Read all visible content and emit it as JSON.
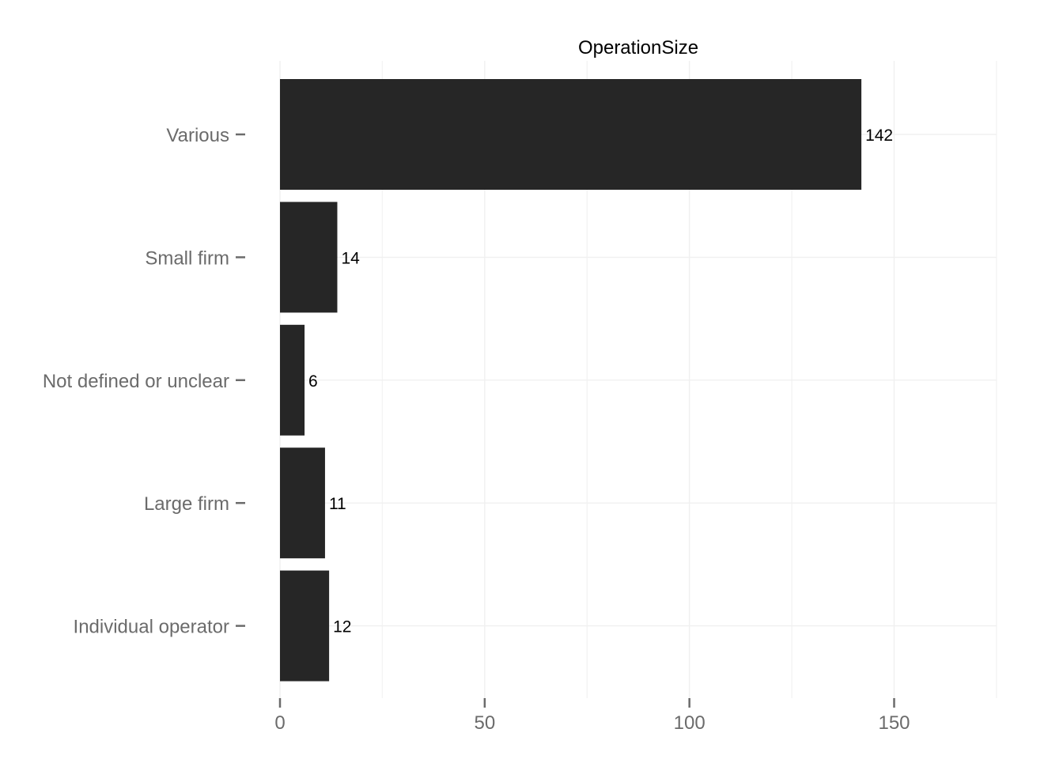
{
  "chart_data": {
    "type": "bar",
    "orientation": "horizontal",
    "title": "OperationSize",
    "categories": [
      "Various",
      "Small firm",
      "Not defined or unclear",
      "Large firm",
      "Individual operator"
    ],
    "values": [
      142,
      14,
      6,
      11,
      12
    ],
    "value_labels": [
      "142",
      "14",
      "6",
      "11",
      "12"
    ],
    "x_ticks": [
      0,
      50,
      100,
      150
    ],
    "x_tick_labels": [
      "0",
      "50",
      "100",
      "150"
    ],
    "xlim": [
      0,
      175
    ],
    "xlabel": "",
    "ylabel": "",
    "grid": true,
    "legend": "none",
    "bar_color": "#262626"
  }
}
